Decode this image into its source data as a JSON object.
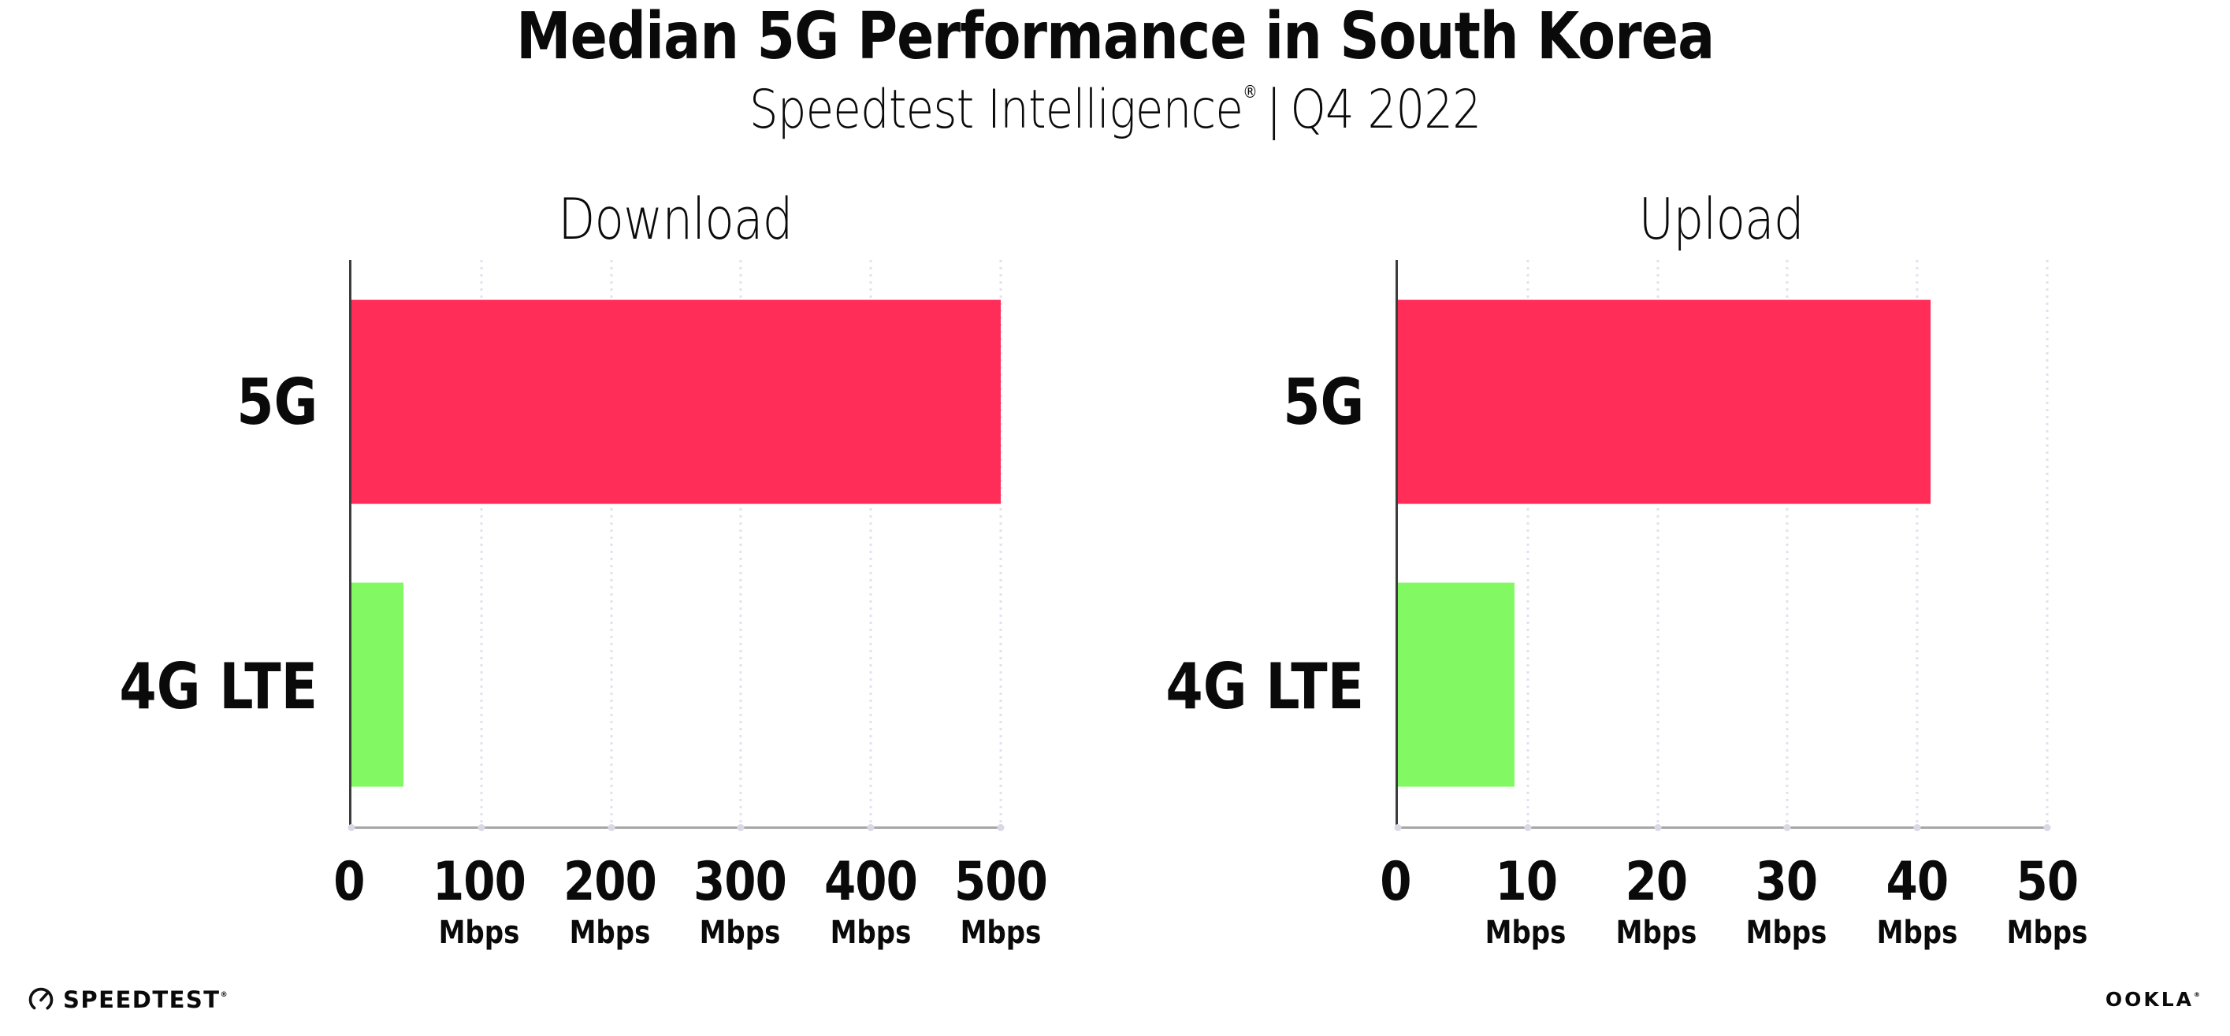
{
  "header": {
    "title": "Median 5G Performance in South Korea",
    "subtitle_brand": "Speedtest Intelligence",
    "registered_mark": "®",
    "subtitle_separator": "|",
    "subtitle_period": "Q4 2022"
  },
  "chart_data": [
    {
      "type": "bar",
      "orientation": "horizontal",
      "title": "Download",
      "categories": [
        "5G",
        "4G LTE"
      ],
      "values": [
        500,
        40
      ],
      "value_unit": "Mbps",
      "xlim": [
        0,
        500
      ],
      "xticks": [
        0,
        100,
        200,
        300,
        400,
        500
      ],
      "xtick_unit_label": "Mbps",
      "bar_colors": [
        "#FF2D58",
        "#82F963"
      ],
      "grid": "vertical dotted gridlines at each tick",
      "legend_position": "none"
    },
    {
      "type": "bar",
      "orientation": "horizontal",
      "title": "Upload",
      "categories": [
        "5G",
        "4G LTE"
      ],
      "values": [
        41,
        9
      ],
      "value_unit": "Mbps",
      "xlim": [
        0,
        50
      ],
      "xticks": [
        0,
        10,
        20,
        30,
        40,
        50
      ],
      "xtick_unit_label": "Mbps",
      "bar_colors": [
        "#FF2D58",
        "#82F963"
      ],
      "grid": "vertical dotted gridlines at each tick",
      "legend_position": "none"
    }
  ],
  "footer": {
    "speedtest_logo_text": "SPEEDTEST",
    "speedtest_mark": "®",
    "ookla_logo_text": "OOKLA",
    "ookla_mark": "®"
  },
  "colors": {
    "bar_5g": "#FF2D58",
    "bar_4g_lte": "#82F963",
    "gridline": "#E2E2EE",
    "x_axis_line": "#A6A6A6",
    "y_axis_line": "#3C3C3C",
    "text": "#0A0A0A",
    "background": "#FFFFFF"
  }
}
